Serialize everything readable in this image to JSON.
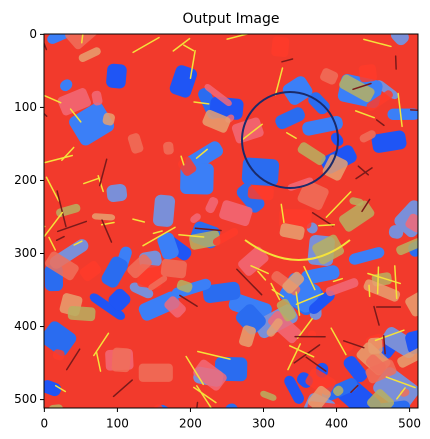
{
  "chart_data": {
    "type": "image",
    "title": "Output Image",
    "xlim": [
      -0.5,
      511.5
    ],
    "ylim": [
      511.5,
      -0.5
    ],
    "xticks": [
      0,
      100,
      200,
      300,
      400,
      500
    ],
    "yticks": [
      0,
      100,
      200,
      300,
      400,
      500
    ]
  }
}
